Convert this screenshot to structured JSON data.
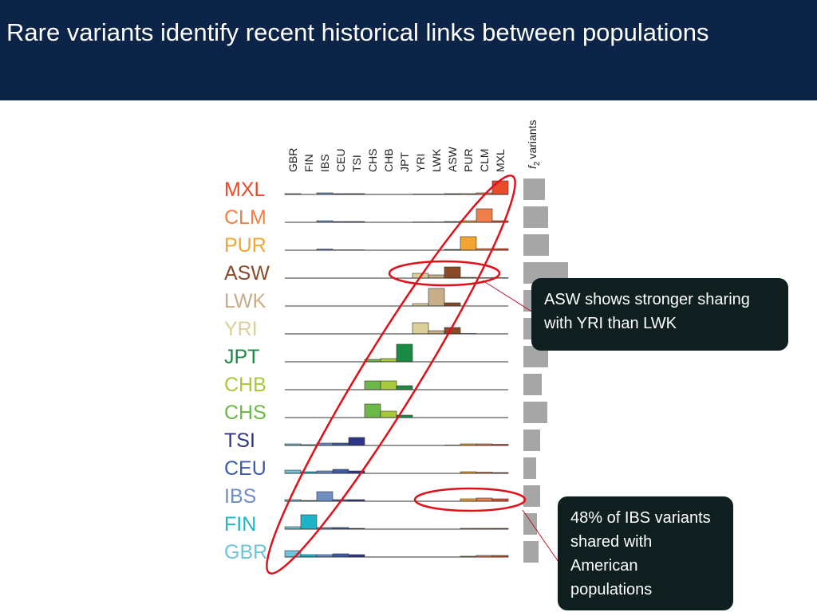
{
  "slide": {
    "title": "Rare variants identify recent historical links between populations",
    "callouts": [
      "ASW shows stronger sharing with YRI than LWK",
      "48% of IBS variants shared with American populations"
    ]
  },
  "chart_data": {
    "type": "bar-matrix",
    "categories": [
      "GBR",
      "FIN",
      "IBS",
      "CEU",
      "TSI",
      "CHS",
      "CHB",
      "JPT",
      "YRI",
      "LWK",
      "ASW",
      "PUR",
      "CLM",
      "MXL"
    ],
    "ylim": [
      0,
      22
    ],
    "series": [
      {
        "name": "MXL",
        "color": "#e84c2b",
        "values": [
          1,
          0,
          2,
          1,
          1,
          0,
          0,
          0,
          0.5,
          0.5,
          1,
          1,
          2,
          17
        ]
      },
      {
        "name": "CLM",
        "color": "#f07f4a",
        "values": [
          0,
          0,
          2,
          1,
          1,
          0,
          0,
          0,
          0.5,
          0.5,
          1,
          2,
          17,
          2
        ]
      },
      {
        "name": "PUR",
        "color": "#f2a530",
        "values": [
          0,
          0,
          1.5,
          0.5,
          0.5,
          0,
          0,
          0,
          0,
          0,
          1,
          17,
          2,
          2
        ]
      },
      {
        "name": "ASW",
        "color": "#8a4a27",
        "values": [
          0,
          0,
          0,
          0,
          0,
          0,
          0,
          0,
          6,
          4,
          14,
          1,
          0.5,
          0.5
        ]
      },
      {
        "name": "LWK",
        "color": "#c8ad89",
        "values": [
          0,
          0,
          0,
          0,
          0,
          0,
          0,
          0,
          3,
          22,
          4,
          0,
          0,
          0
        ]
      },
      {
        "name": "YRI",
        "color": "#d9d09a",
        "values": [
          0,
          0,
          0,
          0,
          0,
          0,
          0,
          0,
          14,
          4,
          8,
          0.5,
          0,
          0
        ]
      },
      {
        "name": "JPT",
        "color": "#1a8a44",
        "values": [
          0,
          0,
          0,
          0,
          0,
          3,
          4,
          22,
          0,
          0,
          0,
          0,
          0,
          0
        ]
      },
      {
        "name": "CHB",
        "color": "#a8c93a",
        "values": [
          0,
          0,
          0,
          0,
          0,
          11,
          11,
          5,
          0,
          0,
          0,
          0,
          0,
          0
        ]
      },
      {
        "name": "CHS",
        "color": "#6cb849",
        "values": [
          0,
          0,
          0,
          0,
          0,
          17,
          8,
          3,
          0,
          0,
          0,
          0,
          0,
          0
        ]
      },
      {
        "name": "TSI",
        "color": "#2e3584",
        "values": [
          2,
          1,
          3,
          3,
          10,
          0,
          0,
          0,
          0,
          0,
          0.5,
          2,
          2,
          1.5
        ]
      },
      {
        "name": "CEU",
        "color": "#3b5ba5",
        "values": [
          4,
          2,
          3,
          5,
          3,
          0,
          0,
          0,
          0,
          0,
          0,
          2,
          1.5,
          1
        ]
      },
      {
        "name": "IBS",
        "color": "#6e8ec4",
        "values": [
          2,
          1,
          12,
          2,
          2,
          0,
          0,
          0,
          0,
          0,
          0,
          3,
          4,
          3
        ]
      },
      {
        "name": "FIN",
        "color": "#1fb5c8",
        "values": [
          3,
          18,
          2,
          2,
          1,
          0,
          0,
          0,
          0,
          0,
          0,
          1,
          1,
          1
        ]
      },
      {
        "name": "GBR",
        "color": "#6cc5d9",
        "values": [
          8,
          3,
          3,
          4,
          3,
          0,
          0,
          0,
          0,
          0,
          0,
          1,
          2,
          2
        ]
      }
    ],
    "f2_label": [
      "f",
      "2",
      "variants"
    ],
    "f2_color": "#a6a6a6",
    "f2_lim": [
      0,
      60
    ],
    "f2_values": [
      27,
      31,
      32,
      56,
      32,
      30,
      31,
      23,
      30,
      21,
      16,
      21,
      17,
      19
    ]
  }
}
